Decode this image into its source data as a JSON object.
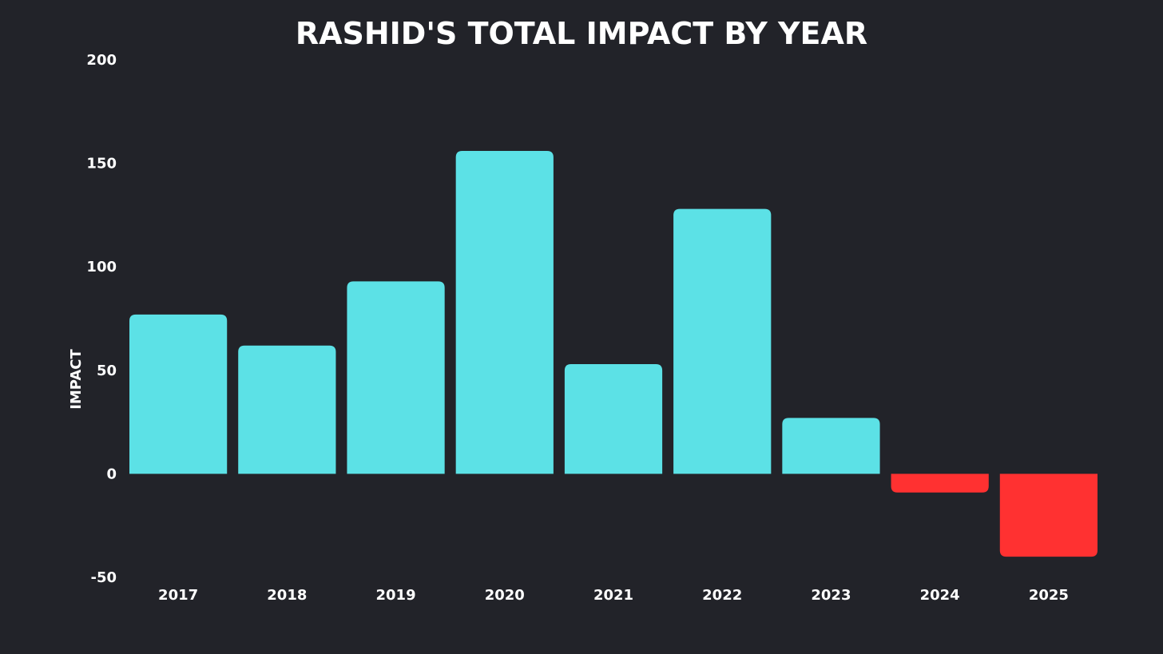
{
  "chart_data": {
    "type": "bar",
    "title": "RASHID'S TOTAL IMPACT BY YEAR",
    "xlabel": "",
    "ylabel": "IMPACT",
    "categories": [
      "2017",
      "2018",
      "2019",
      "2020",
      "2021",
      "2022",
      "2023",
      "2024",
      "2025"
    ],
    "values": [
      77,
      62,
      93,
      156,
      53,
      128,
      27,
      -9,
      -40
    ],
    "ylim": [
      -50,
      200
    ],
    "yticks": [
      -50,
      0,
      50,
      100,
      150,
      200
    ],
    "ytick_labels": [
      "-50",
      "0",
      "50",
      "100",
      "150",
      "200"
    ],
    "grid": false,
    "legend": "none",
    "colors": {
      "background": "#222329",
      "positive": "#5ce1e6",
      "negative": "#ff3131",
      "text": "#ffffff"
    }
  }
}
